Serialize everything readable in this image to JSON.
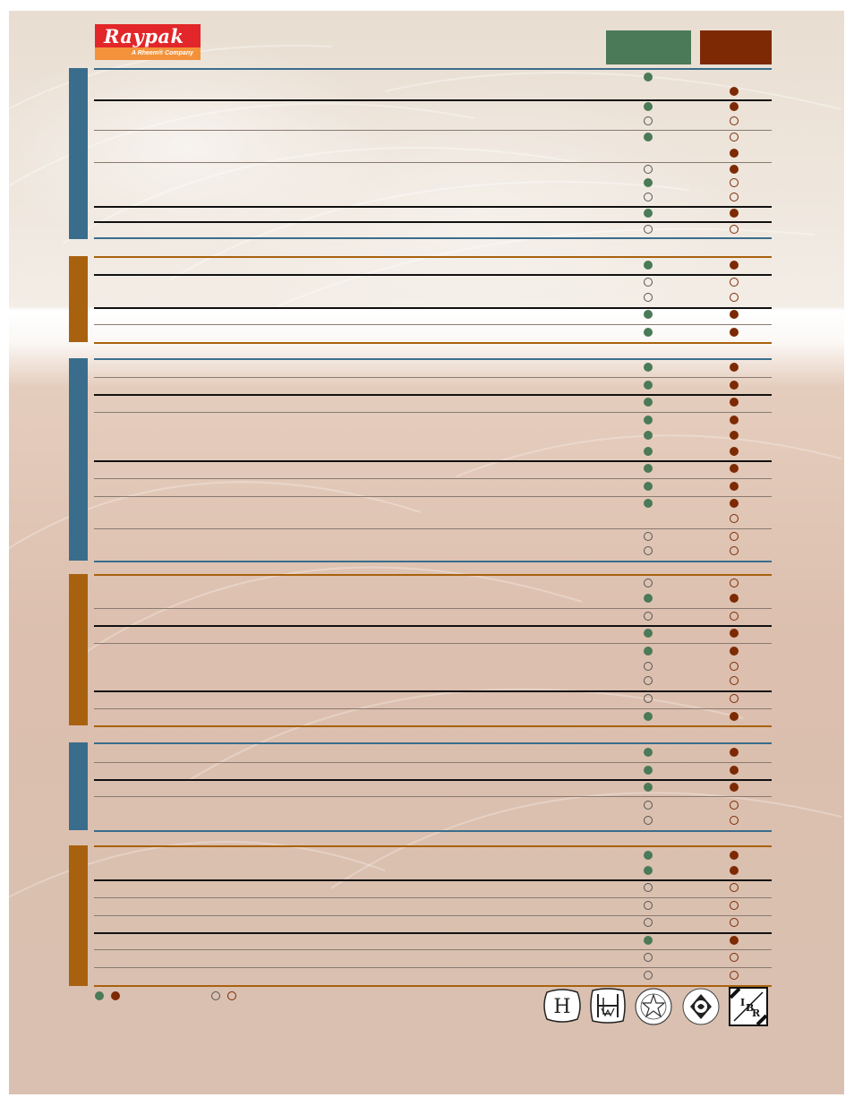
{
  "logo": {
    "brand": "Raypak",
    "tagline": "A Rheem® Company"
  },
  "colors": {
    "col_a": "#4a7a57",
    "col_b": "#7d2a04",
    "section_blue": "#3a6d8c",
    "section_orange": "#a8620f"
  },
  "legend": {
    "standard_icon": "filled-circle-icon",
    "optional_icon": "empty-circle-icon"
  },
  "sections": [
    {
      "color": "blue",
      "bar": [
        64,
        255
      ],
      "rules": [
        [
          64,
          "blue"
        ],
        [
          99,
          "black"
        ],
        [
          133,
          "gray"
        ],
        [
          169,
          "gray"
        ],
        [
          218,
          "black"
        ],
        [
          235,
          "black"
        ],
        [
          253,
          "blue"
        ]
      ],
      "dots_a": [
        [
          74,
          "f"
        ],
        [
          107,
          "f"
        ],
        [
          123,
          "e"
        ],
        [
          141,
          "f"
        ],
        [
          177,
          "e"
        ],
        [
          192,
          "f"
        ],
        [
          208,
          "e"
        ],
        [
          226,
          "f"
        ],
        [
          244,
          "e"
        ]
      ],
      "dots_b": [
        [
          90,
          "f"
        ],
        [
          107,
          "f"
        ],
        [
          123,
          "e"
        ],
        [
          141,
          "e"
        ],
        [
          159,
          "f"
        ],
        [
          177,
          "f"
        ],
        [
          192,
          "e"
        ],
        [
          208,
          "e"
        ],
        [
          226,
          "f"
        ],
        [
          244,
          "e"
        ]
      ]
    },
    {
      "color": "orange",
      "bar": [
        274,
        370
      ],
      "rules": [
        [
          274,
          "orange"
        ],
        [
          294,
          "black"
        ],
        [
          331,
          "black"
        ],
        [
          350,
          "gray"
        ],
        [
          370,
          "orange"
        ]
      ],
      "dots_a": [
        [
          284,
          "f"
        ],
        [
          303,
          "e"
        ],
        [
          320,
          "e"
        ],
        [
          339,
          "f"
        ],
        [
          359,
          "f"
        ]
      ],
      "dots_b": [
        [
          284,
          "f"
        ],
        [
          303,
          "e"
        ],
        [
          320,
          "e"
        ],
        [
          339,
          "f"
        ],
        [
          359,
          "f"
        ]
      ]
    },
    {
      "color": "blue",
      "bar": [
        388,
        614
      ],
      "rules": [
        [
          388,
          "blue"
        ],
        [
          409,
          "gray"
        ],
        [
          428,
          "black"
        ],
        [
          448,
          "gray"
        ],
        [
          502,
          "black"
        ],
        [
          522,
          "gray"
        ],
        [
          542,
          "gray"
        ],
        [
          578,
          "gray"
        ],
        [
          614,
          "blue"
        ]
      ],
      "dots_a": [
        [
          398,
          "f"
        ],
        [
          418,
          "f"
        ],
        [
          437,
          "f"
        ],
        [
          457,
          "f"
        ],
        [
          474,
          "f"
        ],
        [
          492,
          "f"
        ],
        [
          511,
          "f"
        ],
        [
          531,
          "f"
        ],
        [
          550,
          "f"
        ],
        [
          587,
          "e"
        ],
        [
          603,
          "e"
        ]
      ],
      "dots_b": [
        [
          398,
          "f"
        ],
        [
          418,
          "f"
        ],
        [
          437,
          "f"
        ],
        [
          457,
          "f"
        ],
        [
          474,
          "f"
        ],
        [
          492,
          "f"
        ],
        [
          511,
          "f"
        ],
        [
          531,
          "f"
        ],
        [
          550,
          "f"
        ],
        [
          567,
          "e"
        ],
        [
          587,
          "e"
        ],
        [
          603,
          "e"
        ]
      ]
    },
    {
      "color": "orange",
      "bar": [
        629,
        798
      ],
      "rules": [
        [
          629,
          "orange"
        ],
        [
          667,
          "gray"
        ],
        [
          686,
          "black"
        ],
        [
          706,
          "gray"
        ],
        [
          759,
          "black"
        ],
        [
          779,
          "gray"
        ],
        [
          798,
          "orange"
        ]
      ],
      "dots_a": [
        [
          639,
          "e"
        ],
        [
          656,
          "f"
        ],
        [
          676,
          "e"
        ],
        [
          695,
          "f"
        ],
        [
          715,
          "f"
        ],
        [
          732,
          "e"
        ],
        [
          748,
          "e"
        ],
        [
          768,
          "e"
        ],
        [
          788,
          "f"
        ]
      ],
      "dots_b": [
        [
          639,
          "e"
        ],
        [
          656,
          "f"
        ],
        [
          676,
          "e"
        ],
        [
          695,
          "f"
        ],
        [
          715,
          "f"
        ],
        [
          732,
          "e"
        ],
        [
          748,
          "e"
        ],
        [
          768,
          "e"
        ],
        [
          788,
          "f"
        ]
      ]
    },
    {
      "color": "blue",
      "bar": [
        817,
        915
      ],
      "rules": [
        [
          817,
          "blue"
        ],
        [
          839,
          "gray"
        ],
        [
          858,
          "black"
        ],
        [
          877,
          "gray"
        ],
        [
          915,
          "blue"
        ]
      ],
      "dots_a": [
        [
          828,
          "f"
        ],
        [
          848,
          "f"
        ],
        [
          867,
          "f"
        ],
        [
          887,
          "e"
        ],
        [
          904,
          "e"
        ]
      ],
      "dots_b": [
        [
          828,
          "f"
        ],
        [
          848,
          "f"
        ],
        [
          867,
          "f"
        ],
        [
          887,
          "e"
        ],
        [
          904,
          "e"
        ]
      ]
    },
    {
      "color": "orange",
      "bar": [
        932,
        1089
      ],
      "rules": [
        [
          932,
          "orange"
        ],
        [
          970,
          "black"
        ],
        [
          990,
          "gray"
        ],
        [
          1010,
          "gray"
        ],
        [
          1029,
          "black"
        ],
        [
          1048,
          "gray"
        ],
        [
          1068,
          "gray"
        ],
        [
          1088,
          "orange"
        ]
      ],
      "dots_a": [
        [
          943,
          "f"
        ],
        [
          960,
          "f"
        ],
        [
          979,
          "e"
        ],
        [
          999,
          "e"
        ],
        [
          1018,
          "e"
        ],
        [
          1038,
          "f"
        ],
        [
          1057,
          "e"
        ],
        [
          1077,
          "e"
        ]
      ],
      "dots_b": [
        [
          943,
          "f"
        ],
        [
          960,
          "f"
        ],
        [
          979,
          "e"
        ],
        [
          999,
          "e"
        ],
        [
          1018,
          "e"
        ],
        [
          1038,
          "f"
        ],
        [
          1057,
          "e"
        ],
        [
          1077,
          "e"
        ]
      ]
    }
  ],
  "badges": [
    {
      "name": "h-stamp-badge",
      "letter": "H"
    },
    {
      "name": "hlw-stamp-badge",
      "letter": "HLW"
    },
    {
      "name": "star-seal-badge",
      "letter": ""
    },
    {
      "name": "csa-seal-badge",
      "letter": ""
    },
    {
      "name": "ibr-badge",
      "letter": "IBR"
    }
  ]
}
